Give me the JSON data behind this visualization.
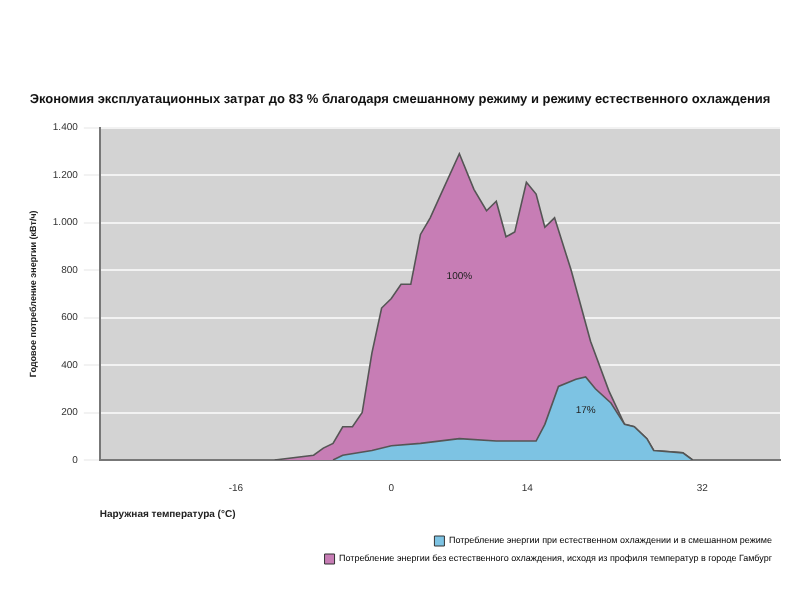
{
  "chart_data": {
    "type": "area",
    "title": "Экономия эксплуатационных затрат до 83 % благодаря смешанному режиму и режиму естественного охлаждения",
    "xlabel": "Наружная температура (°C)",
    "ylabel": "Годовое потребление энергии (кВт/ч)",
    "xlim": [
      -30,
      40
    ],
    "xticks": [
      -16,
      0,
      14,
      32
    ],
    "ylim": [
      0,
      1400
    ],
    "yticks": [
      {
        "value": 0,
        "label": "0"
      },
      {
        "value": 200,
        "label": "200"
      },
      {
        "value": 400,
        "label": "400"
      },
      {
        "value": 600,
        "label": "600"
      },
      {
        "value": 800,
        "label": "800"
      },
      {
        "value": 1000,
        "label": "1.000"
      },
      {
        "value": 1200,
        "label": "1.200"
      },
      {
        "value": 1400,
        "label": "1.400"
      }
    ],
    "grid": "y",
    "legend": "bottom right",
    "series": [
      {
        "name": "Потребление энергии без естественного охлаждения, исходя из профиля температур в городе Гамбург",
        "color": "#c77db5",
        "x": [
          -12,
          -8,
          -7,
          -6,
          -5,
          -4,
          -3,
          -2,
          -1,
          0,
          1,
          2,
          3,
          4,
          5,
          7,
          8.5,
          9.8,
          10.8,
          11.8,
          12.7,
          13.9,
          14.9,
          15.8,
          16.8,
          18.5,
          20.5,
          22.4,
          24,
          25,
          26.3,
          27,
          30,
          31
        ],
        "values": [
          0,
          20,
          50,
          70,
          140,
          140,
          200,
          450,
          640,
          680,
          740,
          740,
          950,
          1020,
          1110,
          1290,
          1140,
          1050,
          1090,
          940,
          960,
          1170,
          1120,
          980,
          1020,
          800,
          500,
          290,
          150,
          140,
          90,
          40,
          30,
          0
        ]
      },
      {
        "name": "Потребление энергии при естественном охлаждении и в смешанном режиме",
        "color": "#7dc3e3",
        "x": [
          -6,
          -5,
          -2,
          0,
          3,
          7,
          10.8,
          13.9,
          14.9,
          15.8,
          17.2,
          19,
          20,
          21,
          22.6,
          24,
          25,
          26.3,
          27,
          30,
          31
        ],
        "values": [
          0,
          20,
          40,
          60,
          70,
          90,
          80,
          80,
          80,
          150,
          310,
          340,
          350,
          300,
          240,
          150,
          140,
          90,
          40,
          30,
          0
        ]
      }
    ],
    "annotations": [
      "100%",
      "17%"
    ]
  }
}
